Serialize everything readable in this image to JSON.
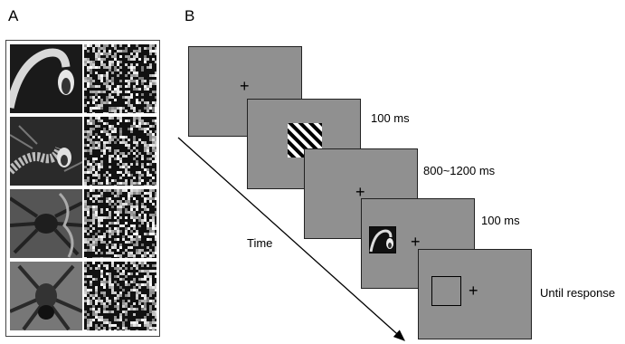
{
  "panels": {
    "a_label": "A",
    "b_label": "B"
  },
  "panel_a": {
    "rows": [
      {
        "stimulus": "snake-photo",
        "control": "scrambled-noise"
      },
      {
        "stimulus": "snake-photo",
        "control": "scrambled-noise"
      },
      {
        "stimulus": "spider-photo",
        "control": "scrambled-noise"
      },
      {
        "stimulus": "spider-photo",
        "control": "scrambled-noise"
      }
    ]
  },
  "panel_b": {
    "time_label": "Time",
    "fixation_symbol": "+",
    "screens": [
      {
        "content": "fixation",
        "duration": ""
      },
      {
        "content": "striped-patch",
        "duration": "100 ms"
      },
      {
        "content": "fixation",
        "duration": "800~1200 ms"
      },
      {
        "content": "image-and-fixation",
        "duration": "100 ms"
      },
      {
        "content": "box-and-fixation",
        "duration": "Until response"
      }
    ]
  },
  "colors": {
    "screen_gray": "#909090",
    "border": "#222222"
  }
}
